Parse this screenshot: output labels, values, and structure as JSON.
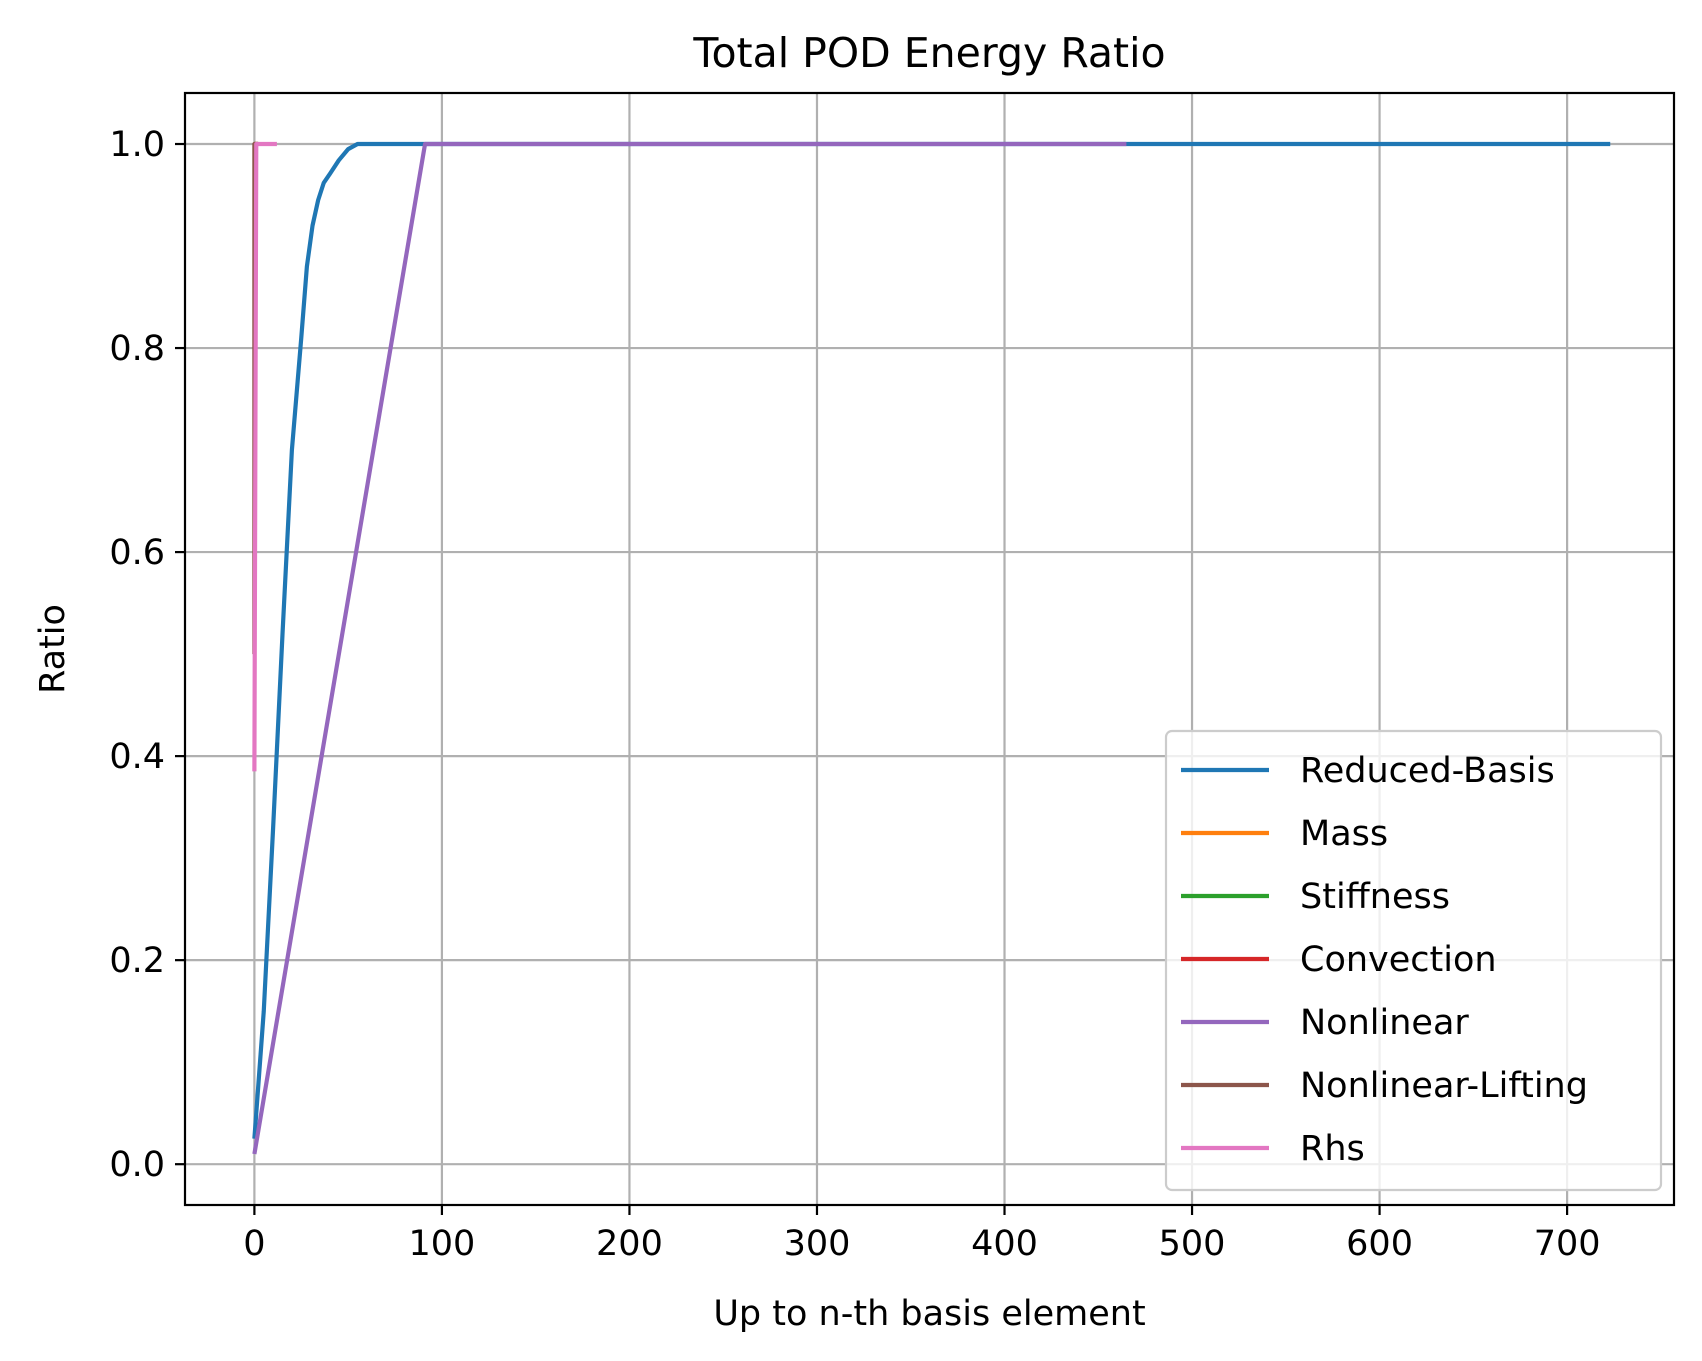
{
  "chart_data": {
    "type": "line",
    "title": "Total POD Energy Ratio",
    "xlabel": "Up to n-th basis element",
    "ylabel": "Ratio",
    "xlim": [
      -37,
      757
    ],
    "ylim": [
      -0.04,
      1.05
    ],
    "xticks": [
      0,
      100,
      200,
      300,
      400,
      500,
      600,
      700
    ],
    "xtick_labels": [
      "0",
      "100",
      "200",
      "300",
      "400",
      "500",
      "600",
      "700"
    ],
    "yticks": [
      0.0,
      0.2,
      0.4,
      0.6,
      0.8,
      1.0
    ],
    "ytick_labels": [
      "0.0",
      "0.2",
      "0.4",
      "0.6",
      "0.8",
      "1.0"
    ],
    "grid": true,
    "legend_position": "lower right",
    "series": [
      {
        "name": "Reduced-Basis",
        "color": "#1f77b4",
        "x": [
          0,
          5,
          10,
          15,
          20,
          25,
          28,
          31,
          34,
          37,
          40,
          45,
          50,
          55,
          60,
          100,
          300,
          500,
          723
        ],
        "y": [
          0.025,
          0.15,
          0.33,
          0.52,
          0.7,
          0.81,
          0.88,
          0.92,
          0.945,
          0.962,
          0.97,
          0.984,
          0.995,
          1.0,
          1.0,
          1.0,
          1.0,
          1.0,
          1.0
        ]
      },
      {
        "name": "Mass",
        "color": "#ff7f0e",
        "x": [
          0,
          1,
          2
        ],
        "y": [
          1.0,
          1.0,
          1.0
        ]
      },
      {
        "name": "Stiffness",
        "color": "#2ca02c",
        "x": [
          0,
          1,
          2
        ],
        "y": [
          1.0,
          1.0,
          1.0
        ]
      },
      {
        "name": "Convection",
        "color": "#d62728",
        "x": [
          0,
          1,
          2
        ],
        "y": [
          1.0,
          1.0,
          1.0
        ]
      },
      {
        "name": "Nonlinear",
        "color": "#9467bd",
        "x": [
          0,
          91,
          200,
          300,
          400,
          465
        ],
        "y": [
          0.01,
          1.0,
          1.0,
          1.0,
          1.0,
          1.0
        ]
      },
      {
        "name": "Nonlinear-Lifting",
        "color": "#8c564b",
        "x": [
          0,
          0,
          1,
          2
        ],
        "y": [
          0.5,
          1.0,
          1.0,
          1.0
        ]
      },
      {
        "name": "Rhs",
        "color": "#e377c2",
        "x": [
          0,
          1,
          2,
          5,
          8,
          12
        ],
        "y": [
          0.385,
          1.0,
          1.0,
          1.0,
          1.0,
          1.0
        ]
      }
    ]
  }
}
